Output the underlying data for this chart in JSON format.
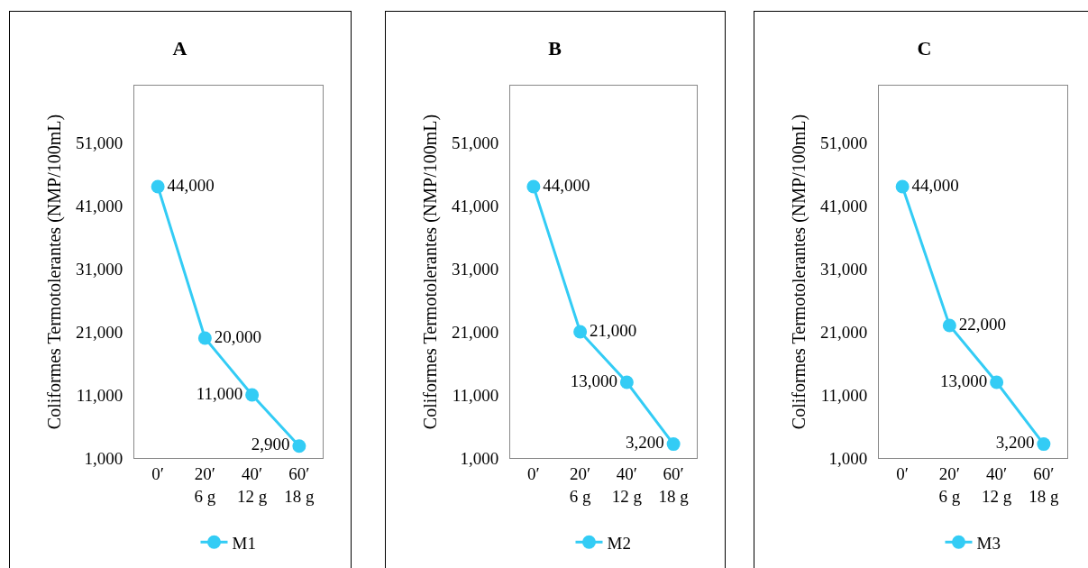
{
  "chart_data": [
    {
      "type": "line",
      "title": "A",
      "ylabel": "Coliformes Termotolerantes (NMP/100mL)",
      "categories": [
        "0′",
        "20′\n6 g",
        "40′\n12 g",
        "60′\n18 g"
      ],
      "series": [
        {
          "name": "M1",
          "color": "#33ccf5",
          "values": [
            44000,
            20000,
            11000,
            2900
          ],
          "value_labels": [
            "44,000",
            "20,000",
            "11,000",
            "2,900"
          ]
        }
      ],
      "ylim": [
        1000,
        60000
      ],
      "yticks": [
        {
          "value": 1000,
          "label": "1,000"
        },
        {
          "value": 11000,
          "label": "11,000"
        },
        {
          "value": 21000,
          "label": "21,000"
        },
        {
          "value": 31000,
          "label": "31,000"
        },
        {
          "value": 41000,
          "label": "41,000"
        },
        {
          "value": 51000,
          "label": "51,000"
        }
      ],
      "grid": false,
      "legend": "bottom",
      "marker": "circle",
      "line_style": "solid"
    },
    {
      "type": "line",
      "title": "B",
      "ylabel": "Coliformes Termotolerantes (NMP/100mL)",
      "categories": [
        "0′",
        "20′\n6 g",
        "40′\n12 g",
        "60′\n18 g"
      ],
      "series": [
        {
          "name": "M2",
          "color": "#33ccf5",
          "values": [
            44000,
            21000,
            13000,
            3200
          ],
          "value_labels": [
            "44,000",
            "21,000",
            "13,000",
            "3,200"
          ]
        }
      ],
      "ylim": [
        1000,
        60000
      ],
      "yticks": [
        {
          "value": 1000,
          "label": "1,000"
        },
        {
          "value": 11000,
          "label": "11,000"
        },
        {
          "value": 21000,
          "label": "21,000"
        },
        {
          "value": 31000,
          "label": "31,000"
        },
        {
          "value": 41000,
          "label": "41,000"
        },
        {
          "value": 51000,
          "label": "51,000"
        }
      ],
      "grid": false,
      "legend": "bottom",
      "marker": "circle",
      "line_style": "solid"
    },
    {
      "type": "line",
      "title": "C",
      "ylabel": "Coliformes Termotolerantes (NMP/100mL)",
      "categories": [
        "0′",
        "20′\n6 g",
        "40′\n12 g",
        "60′\n18 g"
      ],
      "series": [
        {
          "name": "M3",
          "color": "#33ccf5",
          "values": [
            44000,
            22000,
            13000,
            3200
          ],
          "value_labels": [
            "44,000",
            "22,000",
            "13,000",
            "3,200"
          ]
        }
      ],
      "ylim": [
        1000,
        60000
      ],
      "yticks": [
        {
          "value": 1000,
          "label": "1,000"
        },
        {
          "value": 11000,
          "label": "11,000"
        },
        {
          "value": 21000,
          "label": "21,000"
        },
        {
          "value": 31000,
          "label": "31,000"
        },
        {
          "value": 41000,
          "label": "41,000"
        },
        {
          "value": 51000,
          "label": "51,000"
        }
      ],
      "grid": false,
      "legend": "bottom",
      "marker": "circle",
      "line_style": "solid"
    }
  ]
}
